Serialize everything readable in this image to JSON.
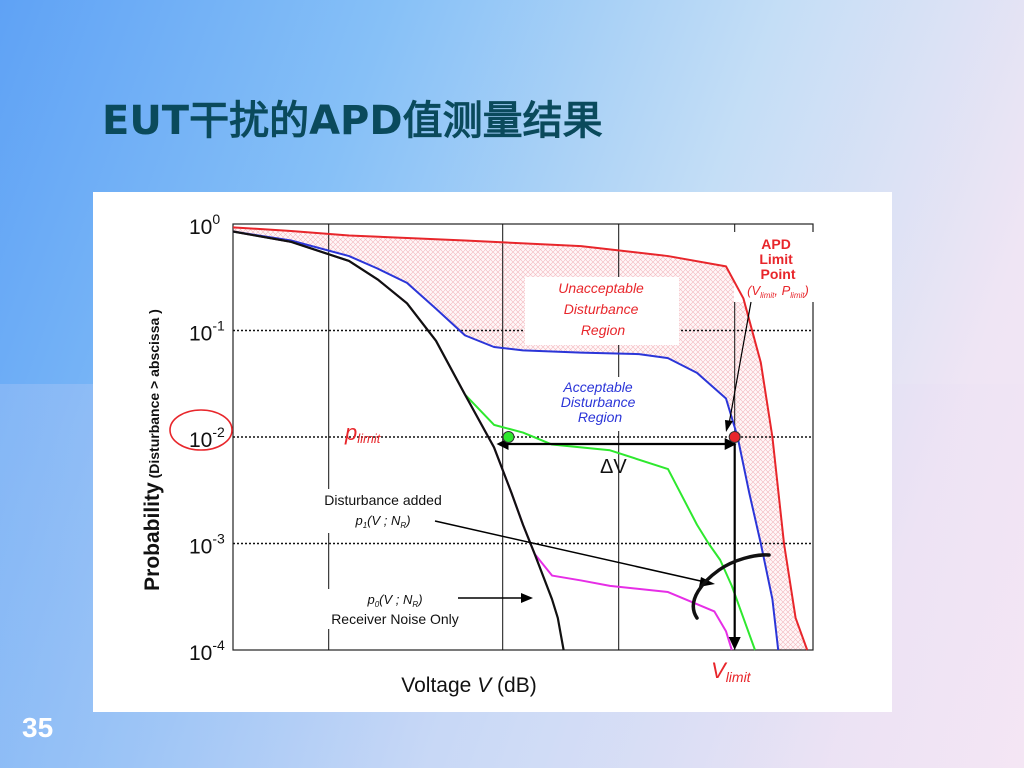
{
  "slide": {
    "title": "EUT干扰的APD值测量结果",
    "number": "35"
  },
  "colors": {
    "title": "#0a4a5c",
    "red": "#e8262b",
    "blue": "#2b35d8",
    "green": "#2ee82e",
    "magenta": "#e62ee6",
    "black": "#111111",
    "hatch": "#f3b9bf"
  },
  "chart_data": {
    "type": "line",
    "scale": {
      "y": "log",
      "x": "linear"
    },
    "ylim": [
      0.0001,
      1
    ],
    "xlim": [
      0,
      100
    ],
    "grid": true,
    "xlabel": {
      "prefix": "Voltage ",
      "var": "V",
      "suffix": " (dB)"
    },
    "ylabel": {
      "main": "Probability",
      "sub": " (Disturbance > abscissa )"
    },
    "y_ticks": [
      {
        "base": "10",
        "exp": "0",
        "value": 1
      },
      {
        "base": "10",
        "exp": "-1",
        "value": 0.1
      },
      {
        "base": "10",
        "exp": "-2",
        "value": 0.01
      },
      {
        "base": "10",
        "exp": "-3",
        "value": 0.001
      },
      {
        "base": "10",
        "exp": "-4",
        "value": 0.0001
      }
    ],
    "x_gridlines": [
      16.5,
      46.5,
      66.5,
      86.5
    ],
    "series": [
      {
        "key": "red",
        "color_key": "red",
        "x": [
          0,
          10,
          20,
          40,
          60,
          75,
          85,
          88,
          91,
          93,
          95,
          97,
          99
        ],
        "y": [
          0.93,
          0.86,
          0.78,
          0.7,
          0.62,
          0.5,
          0.4,
          0.2,
          0.05,
          0.01,
          0.001,
          0.0002,
          0.0001
        ]
      },
      {
        "key": "blue",
        "color_key": "blue",
        "x": [
          0,
          10,
          20,
          25,
          30,
          35,
          40,
          45,
          50,
          60,
          70,
          75,
          80,
          85,
          87,
          89,
          91,
          93,
          94
        ],
        "y": [
          0.85,
          0.7,
          0.5,
          0.38,
          0.28,
          0.16,
          0.09,
          0.07,
          0.065,
          0.062,
          0.06,
          0.055,
          0.04,
          0.023,
          0.01,
          0.003,
          0.001,
          0.0003,
          0.0001
        ]
      },
      {
        "key": "green",
        "color_key": "green",
        "x": [
          0,
          10,
          20,
          25,
          30,
          35,
          40,
          45,
          50,
          55,
          65,
          75,
          80,
          82,
          84,
          86,
          88,
          90
        ],
        "y": [
          0.85,
          0.68,
          0.45,
          0.3,
          0.18,
          0.08,
          0.025,
          0.013,
          0.011,
          0.0085,
          0.0075,
          0.005,
          0.0015,
          0.001,
          0.0007,
          0.0004,
          0.0002,
          0.0001
        ]
      },
      {
        "key": "magenta",
        "color_key": "magenta",
        "x": [
          0,
          10,
          20,
          25,
          30,
          35,
          40,
          45,
          48,
          50,
          52,
          55,
          60,
          65,
          75,
          83,
          85,
          86
        ],
        "y": [
          0.85,
          0.68,
          0.45,
          0.3,
          0.18,
          0.08,
          0.025,
          0.008,
          0.003,
          0.0015,
          0.0008,
          0.0005,
          0.00045,
          0.0004,
          0.00035,
          0.00023,
          0.00015,
          0.0001
        ]
      },
      {
        "key": "black",
        "color_key": "black",
        "x": [
          0,
          10,
          20,
          25,
          30,
          35,
          40,
          45,
          48,
          50,
          52,
          55,
          56,
          57
        ],
        "y": [
          0.85,
          0.68,
          0.45,
          0.3,
          0.18,
          0.08,
          0.025,
          0.008,
          0.003,
          0.0015,
          0.0008,
          0.0003,
          0.0002,
          0.0001
        ]
      }
    ],
    "points": [
      {
        "key": "green_point",
        "x": 47.5,
        "y": 0.01,
        "color_key": "green"
      },
      {
        "key": "apd_point",
        "x": 86.5,
        "y": 0.01,
        "color_key": "red"
      }
    ],
    "annotations": {
      "unacceptable": [
        "Unacceptable",
        "Disturbance",
        "Region"
      ],
      "acceptable": [
        "Acceptable",
        "Disturbance",
        "Region"
      ],
      "apd": [
        "APD",
        "Limit",
        "Point"
      ],
      "apd_coords": {
        "open": "(V",
        "sub1": "limit",
        "mid": ", P",
        "sub2": "limit",
        "close": ")"
      },
      "p_limit": {
        "main": "p",
        "sub": "limit"
      },
      "v_limit": {
        "main": "V",
        "sub": "limit"
      },
      "delta_v": "ΔV",
      "dist_added": {
        "line1": "Disturbance added",
        "p": "p",
        "p_sub": "1",
        "open": "(",
        "var1": "V",
        "semi": " ; ",
        "var2": "N",
        "var2_sub": "R",
        "close": ")"
      },
      "noise_only": {
        "p": "p",
        "p_sub": "0",
        "open": "(",
        "var1": "V",
        "semi": " ; ",
        "var2": "N",
        "var2_sub": "R",
        "close": ")",
        "line2": "Receiver Noise Only"
      }
    }
  }
}
